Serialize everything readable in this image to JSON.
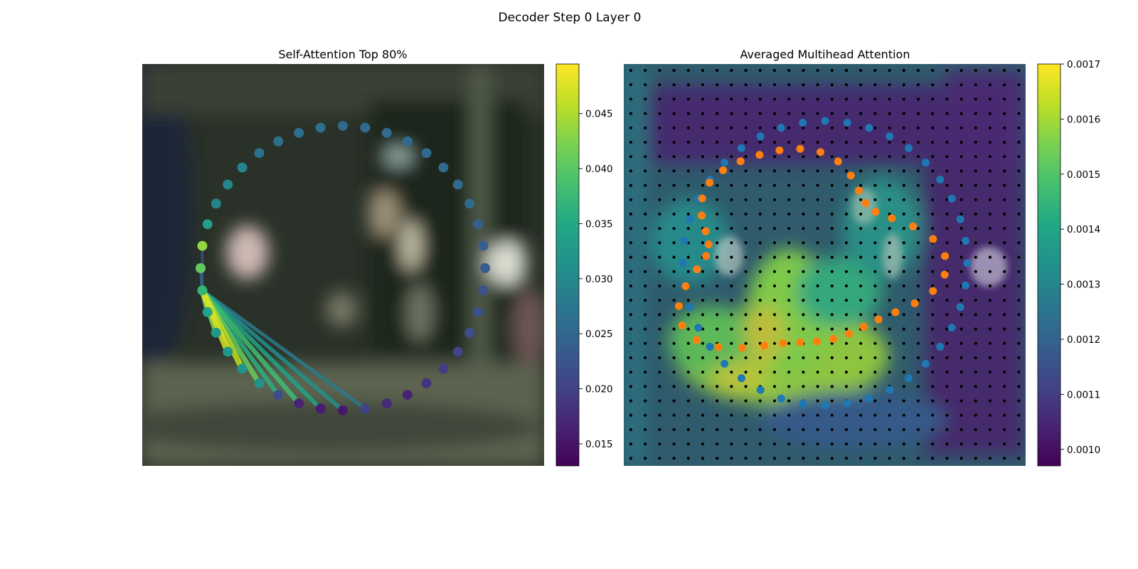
{
  "figure": {
    "title": "Decoder Step 0 Layer 0"
  },
  "chart_data": [
    {
      "type": "scatter",
      "title": "Self-Attention Top 80%",
      "xlabel": "",
      "ylabel": "",
      "grid": false,
      "circle_point_count": 40,
      "point_values": [
        0.0255,
        0.0255,
        0.0255,
        0.0255,
        0.0255,
        0.0255,
        0.0255,
        0.0255,
        0.024,
        0.024,
        0.0235,
        0.0225,
        0.0225,
        0.0215,
        0.0205,
        0.0195,
        0.0185,
        0.0165,
        0.0175,
        0.0205,
        0.0155,
        0.016,
        0.0165,
        0.0215,
        0.0315,
        0.0315,
        0.0325,
        0.0325,
        0.034,
        0.037,
        0.0405,
        0.0435,
        0.0335,
        0.0295,
        0.0295,
        0.0295,
        0.0265,
        0.0265,
        0.0265,
        0.0265
      ],
      "source_point_index": 29,
      "attention_edges": [
        {
          "target_index": 26,
          "value": 0.0475
        },
        {
          "target_index": 25,
          "value": 0.046
        },
        {
          "target_index": 27,
          "value": 0.0425
        },
        {
          "target_index": 24,
          "value": 0.041
        },
        {
          "target_index": 28,
          "value": 0.039
        },
        {
          "target_index": 22,
          "value": 0.038
        },
        {
          "target_index": 23,
          "value": 0.036
        },
        {
          "target_index": 21,
          "value": 0.034
        },
        {
          "target_index": 20,
          "value": 0.031
        },
        {
          "target_index": 19,
          "value": 0.028
        },
        {
          "target_index": 30,
          "value": 0.025
        },
        {
          "target_index": 31,
          "value": 0.022
        }
      ],
      "colorbar": {
        "colormap": "viridis",
        "range": [
          0.013,
          0.0495
        ],
        "ticks": [
          0.015,
          0.02,
          0.025,
          0.03,
          0.035,
          0.04,
          0.045
        ],
        "tick_labels": [
          "0.015",
          "0.020",
          "0.025",
          "0.030",
          "0.035",
          "0.040",
          "0.045"
        ]
      }
    },
    {
      "type": "heatmap",
      "title": "Averaged Multihead Attention",
      "xlabel": "",
      "ylabel": "",
      "grid_points": {
        "rows": 28,
        "cols": 28,
        "color": "#000000"
      },
      "series": [
        {
          "color": "#1f77b4",
          "point_count": 40
        },
        {
          "color": "#ff7f0e",
          "point_count": 40
        }
      ],
      "colorbar": {
        "colormap": "viridis",
        "range": [
          0.00097,
          0.0017
        ],
        "ticks": [
          0.001,
          0.0011,
          0.0012,
          0.0013,
          0.0014,
          0.0015,
          0.0016,
          0.0017
        ],
        "tick_labels": [
          "0.0010",
          "0.0011",
          "0.0012",
          "0.0013",
          "0.0014",
          "0.0015",
          "0.0016",
          "0.0017"
        ]
      }
    }
  ],
  "colors": {
    "series_blue": "#1f77b4",
    "series_orange": "#ff7f0e",
    "grid_dot": "#000000",
    "photo_dark": "#2a3128",
    "photo_floor": "#5b6450"
  }
}
